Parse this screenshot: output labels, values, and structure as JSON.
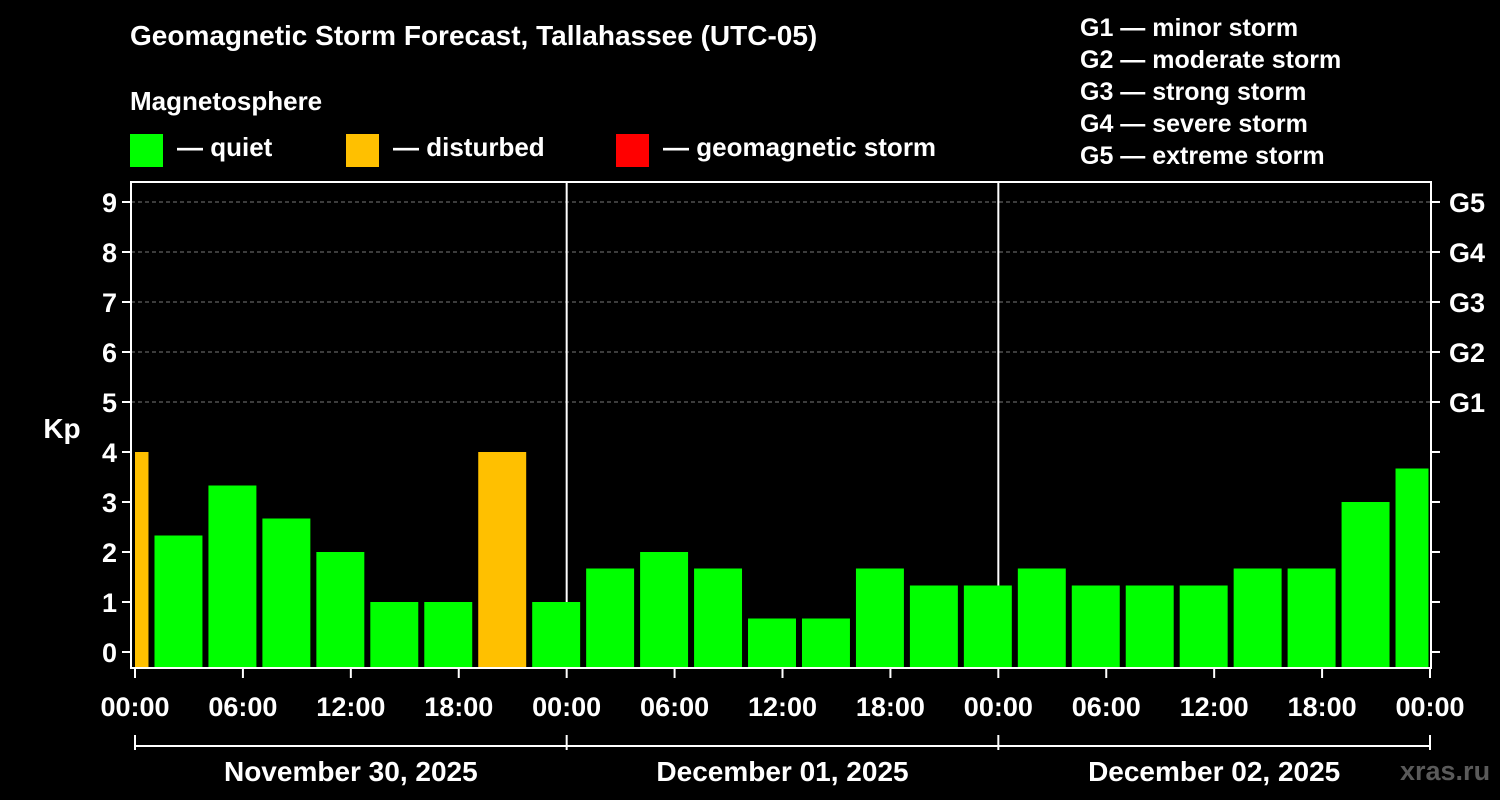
{
  "header": {
    "title": "Geomagnetic Storm Forecast, Tallahassee (UTC-05)",
    "subtitle": "Magnetosphere"
  },
  "legend": [
    {
      "label": "— quiet",
      "color": "#00ff00"
    },
    {
      "label": "— disturbed",
      "color": "#ffc000"
    },
    {
      "label": "— geomagnetic storm",
      "color": "#ff0000"
    }
  ],
  "storm_levels": [
    "G1 — minor storm",
    "G2 — moderate storm",
    "G3 — strong storm",
    "G4 — severe storm",
    "G5 — extreme storm"
  ],
  "watermark": "xras.ru",
  "chart_data": {
    "type": "bar",
    "ylabel": "Kp",
    "ylim": [
      0,
      9
    ],
    "y_ticks": [
      0,
      1,
      2,
      3,
      4,
      5,
      6,
      7,
      8,
      9
    ],
    "right_axis_labels": [
      {
        "kp": 5,
        "label": "G1"
      },
      {
        "kp": 6,
        "label": "G2"
      },
      {
        "kp": 7,
        "label": "G3"
      },
      {
        "kp": 8,
        "label": "G4"
      },
      {
        "kp": 9,
        "label": "G5"
      }
    ],
    "grid": "horizontal dashed at Kp 5–9",
    "x_range_hours": [
      0,
      72
    ],
    "x_tick_labels": [
      "00:00",
      "06:00",
      "12:00",
      "18:00",
      "00:00",
      "06:00",
      "12:00",
      "18:00",
      "00:00",
      "06:00",
      "12:00",
      "18:00",
      "00:00"
    ],
    "day_labels": [
      "November 30, 2025",
      "December 01, 2025",
      "December 02, 2025"
    ],
    "bars": [
      {
        "start": 0,
        "end": 1,
        "value": 4.0,
        "status": "disturbed"
      },
      {
        "start": 1,
        "end": 4,
        "value": 2.33,
        "status": "quiet"
      },
      {
        "start": 4,
        "end": 7,
        "value": 3.33,
        "status": "quiet"
      },
      {
        "start": 7,
        "end": 10,
        "value": 2.67,
        "status": "quiet"
      },
      {
        "start": 10,
        "end": 13,
        "value": 2.0,
        "status": "quiet"
      },
      {
        "start": 13,
        "end": 16,
        "value": 1.0,
        "status": "quiet"
      },
      {
        "start": 16,
        "end": 19,
        "value": 1.0,
        "status": "quiet"
      },
      {
        "start": 19,
        "end": 22,
        "value": 4.0,
        "status": "disturbed"
      },
      {
        "start": 22,
        "end": 25,
        "value": 1.0,
        "status": "quiet"
      },
      {
        "start": 25,
        "end": 28,
        "value": 1.67,
        "status": "quiet"
      },
      {
        "start": 28,
        "end": 31,
        "value": 2.0,
        "status": "quiet"
      },
      {
        "start": 31,
        "end": 34,
        "value": 1.67,
        "status": "quiet"
      },
      {
        "start": 34,
        "end": 37,
        "value": 0.67,
        "status": "quiet"
      },
      {
        "start": 37,
        "end": 40,
        "value": 0.67,
        "status": "quiet"
      },
      {
        "start": 40,
        "end": 43,
        "value": 1.67,
        "status": "quiet"
      },
      {
        "start": 43,
        "end": 46,
        "value": 1.33,
        "status": "quiet"
      },
      {
        "start": 46,
        "end": 49,
        "value": 1.33,
        "status": "quiet"
      },
      {
        "start": 49,
        "end": 52,
        "value": 1.67,
        "status": "quiet"
      },
      {
        "start": 52,
        "end": 55,
        "value": 1.33,
        "status": "quiet"
      },
      {
        "start": 55,
        "end": 58,
        "value": 1.33,
        "status": "quiet"
      },
      {
        "start": 58,
        "end": 61,
        "value": 1.33,
        "status": "quiet"
      },
      {
        "start": 61,
        "end": 64,
        "value": 1.67,
        "status": "quiet"
      },
      {
        "start": 64,
        "end": 67,
        "value": 1.67,
        "status": "quiet"
      },
      {
        "start": 67,
        "end": 70,
        "value": 3.0,
        "status": "quiet"
      },
      {
        "start": 70,
        "end": 72,
        "value": 3.67,
        "status": "quiet"
      }
    ],
    "status_colors": {
      "quiet": "#00ff00",
      "disturbed": "#ffc000",
      "storm": "#ff0000"
    }
  }
}
